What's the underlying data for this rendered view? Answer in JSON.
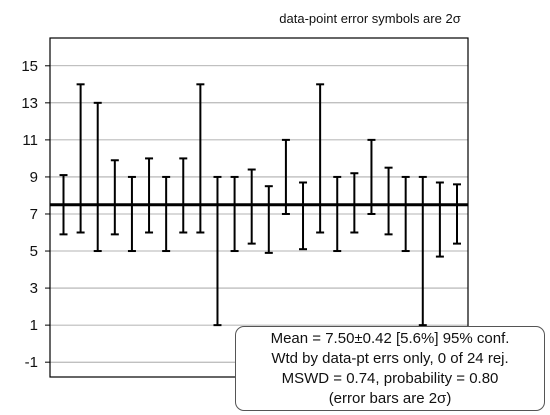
{
  "chart_data": {
    "type": "error_bar",
    "title": "data-point error symbols are 2σ",
    "y_ticks": [
      "-1",
      "1",
      "3",
      "5",
      "7",
      "9",
      "11",
      "13",
      "15"
    ],
    "ylim": [
      -1.8,
      16.5
    ],
    "grid": true,
    "points": [
      {
        "low": 5.9,
        "high": 9.1
      },
      {
        "low": 6.0,
        "high": 14.0
      },
      {
        "low": 5.0,
        "high": 13.0
      },
      {
        "low": 5.9,
        "high": 9.9
      },
      {
        "low": 5.0,
        "high": 9.0
      },
      {
        "low": 6.0,
        "high": 10.0
      },
      {
        "low": 5.0,
        "high": 9.0
      },
      {
        "low": 6.0,
        "high": 10.0
      },
      {
        "low": 6.0,
        "high": 14.0
      },
      {
        "low": 1.0,
        "high": 9.0
      },
      {
        "low": 5.0,
        "high": 9.0
      },
      {
        "low": 5.4,
        "high": 9.4
      },
      {
        "low": 4.9,
        "high": 8.5
      },
      {
        "low": 7.0,
        "high": 11.0
      },
      {
        "low": 5.1,
        "high": 8.7
      },
      {
        "low": 6.0,
        "high": 14.0
      },
      {
        "low": 5.0,
        "high": 9.0
      },
      {
        "low": 6.0,
        "high": 9.2
      },
      {
        "low": 7.0,
        "high": 11.0
      },
      {
        "low": 5.9,
        "high": 9.5
      },
      {
        "low": 5.0,
        "high": 9.0
      },
      {
        "low": 1.0,
        "high": 9.0
      },
      {
        "low": 4.7,
        "high": 8.7
      },
      {
        "low": 5.4,
        "high": 8.6
      }
    ],
    "mean": 7.5,
    "stats": [
      "Mean = 7.50±0.42  [5.6%]  95% conf.",
      "Wtd by data-pt errs only, 0 of 24 rej.",
      "MSWD = 0.74, probability = 0.80",
      "(error bars are 2σ)"
    ]
  }
}
